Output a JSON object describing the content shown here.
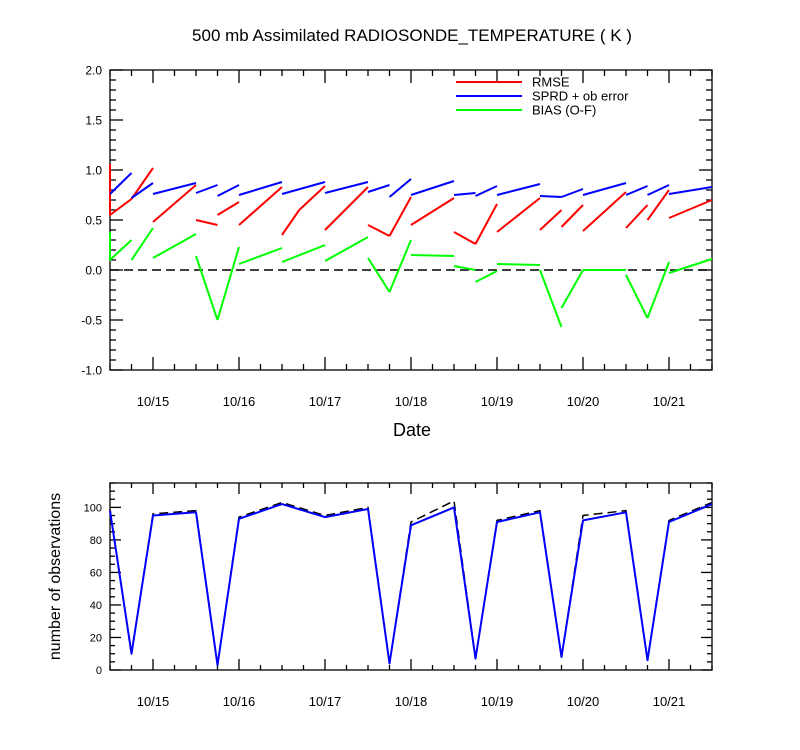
{
  "figure": {
    "title": "500 mb Assimilated RADIOSONDE_TEMPERATURE ( K )",
    "xlabel": "Date"
  },
  "chart_data": [
    {
      "type": "line",
      "title": "500 mb Assimilated RADIOSONDE_TEMPERATURE ( K )",
      "xlabel": "Date",
      "ylabel": "",
      "ylim": [
        -1.0,
        2.0
      ],
      "xlim": [
        14.5,
        21.5
      ],
      "x_tick_values": [
        15,
        16,
        17,
        18,
        19,
        20,
        21
      ],
      "x_tick_labels": [
        "10/15",
        "10/16",
        "10/17",
        "10/18",
        "10/19",
        "10/20",
        "10/21"
      ],
      "y_tick_values": [
        -1.0,
        -0.5,
        0.0,
        0.5,
        1.0,
        1.5,
        2.0
      ],
      "y_tick_labels": [
        "-1.0",
        "-0.5",
        "0.0",
        "0.5",
        "1.0",
        "1.5",
        "2.0"
      ],
      "reference_line": {
        "y": 0.0,
        "style": "dashed",
        "color": "#000000"
      },
      "legend": {
        "placement": "top-right",
        "entries": [
          "RMSE",
          "SPRD + ob error",
          "BIAS (O-F)"
        ]
      },
      "series": [
        {
          "name": "RMSE",
          "color": "#ff0000",
          "segments": [
            [
              [
                14.5,
                1.06
              ],
              [
                14.5,
                0.55
              ],
              [
                14.75,
                0.71
              ]
            ],
            [
              [
                14.75,
                0.71
              ],
              [
                15.0,
                1.02
              ]
            ],
            [
              [
                15.0,
                0.48
              ],
              [
                15.5,
                0.85
              ]
            ],
            [
              [
                15.5,
                0.5
              ],
              [
                15.75,
                0.45
              ]
            ],
            [
              [
                15.75,
                0.55
              ],
              [
                16.0,
                0.68
              ]
            ],
            [
              [
                16.0,
                0.45
              ],
              [
                16.5,
                0.83
              ]
            ],
            [
              [
                16.5,
                0.35
              ],
              [
                16.7,
                0.6
              ]
            ],
            [
              [
                16.7,
                0.6
              ],
              [
                17.0,
                0.84
              ]
            ],
            [
              [
                17.0,
                0.4
              ],
              [
                17.5,
                0.83
              ]
            ],
            [
              [
                17.5,
                0.45
              ],
              [
                17.75,
                0.34
              ]
            ],
            [
              [
                17.75,
                0.34
              ],
              [
                18.0,
                0.73
              ]
            ],
            [
              [
                18.0,
                0.45
              ],
              [
                18.5,
                0.72
              ]
            ],
            [
              [
                18.5,
                0.38
              ],
              [
                18.75,
                0.26
              ]
            ],
            [
              [
                18.75,
                0.26
              ],
              [
                19.0,
                0.66
              ]
            ],
            [
              [
                19.0,
                0.38
              ],
              [
                19.5,
                0.72
              ]
            ],
            [
              [
                19.5,
                0.4
              ],
              [
                19.75,
                0.6
              ]
            ],
            [
              [
                19.75,
                0.43
              ],
              [
                20.0,
                0.65
              ]
            ],
            [
              [
                20.0,
                0.39
              ],
              [
                20.5,
                0.78
              ]
            ],
            [
              [
                20.5,
                0.42
              ],
              [
                20.75,
                0.65
              ]
            ],
            [
              [
                20.75,
                0.5
              ],
              [
                21.0,
                0.8
              ]
            ],
            [
              [
                21.0,
                0.52
              ],
              [
                21.5,
                0.7
              ]
            ]
          ]
        },
        {
          "name": "SPRD + ob error",
          "color": "#0000ff",
          "segments": [
            [
              [
                14.5,
                0.76
              ],
              [
                14.75,
                0.97
              ]
            ],
            [
              [
                14.75,
                0.72
              ],
              [
                15.0,
                0.87
              ]
            ],
            [
              [
                15.0,
                0.76
              ],
              [
                15.5,
                0.87
              ]
            ],
            [
              [
                15.5,
                0.77
              ],
              [
                15.75,
                0.85
              ]
            ],
            [
              [
                15.75,
                0.74
              ],
              [
                16.0,
                0.85
              ]
            ],
            [
              [
                16.0,
                0.75
              ],
              [
                16.5,
                0.88
              ]
            ],
            [
              [
                16.5,
                0.76
              ],
              [
                17.0,
                0.88
              ]
            ],
            [
              [
                17.0,
                0.77
              ],
              [
                17.5,
                0.88
              ]
            ],
            [
              [
                17.5,
                0.78
              ],
              [
                17.75,
                0.85
              ]
            ],
            [
              [
                17.75,
                0.73
              ],
              [
                18.0,
                0.91
              ]
            ],
            [
              [
                18.0,
                0.75
              ],
              [
                18.5,
                0.89
              ]
            ],
            [
              [
                18.5,
                0.75
              ],
              [
                18.75,
                0.77
              ]
            ],
            [
              [
                18.75,
                0.74
              ],
              [
                19.0,
                0.84
              ]
            ],
            [
              [
                19.0,
                0.75
              ],
              [
                19.5,
                0.86
              ]
            ],
            [
              [
                19.5,
                0.74
              ],
              [
                19.75,
                0.73
              ]
            ],
            [
              [
                19.75,
                0.73
              ],
              [
                20.0,
                0.81
              ]
            ],
            [
              [
                20.0,
                0.75
              ],
              [
                20.5,
                0.87
              ]
            ],
            [
              [
                20.5,
                0.75
              ],
              [
                20.75,
                0.84
              ]
            ],
            [
              [
                20.75,
                0.75
              ],
              [
                21.0,
                0.85
              ]
            ],
            [
              [
                21.0,
                0.76
              ],
              [
                21.5,
                0.83
              ]
            ]
          ]
        },
        {
          "name": "BIAS (O-F)",
          "color": "#00ff00",
          "segments": [
            [
              [
                14.5,
                0.38
              ],
              [
                14.5,
                0.1
              ],
              [
                14.75,
                0.3
              ]
            ],
            [
              [
                14.75,
                0.1
              ],
              [
                15.0,
                0.42
              ]
            ],
            [
              [
                15.0,
                0.12
              ],
              [
                15.5,
                0.36
              ]
            ],
            [
              [
                15.5,
                0.14
              ],
              [
                15.75,
                -0.5
              ]
            ],
            [
              [
                15.75,
                -0.5
              ],
              [
                16.0,
                0.23
              ]
            ],
            [
              [
                16.0,
                0.06
              ],
              [
                16.5,
                0.22
              ]
            ],
            [
              [
                16.5,
                0.08
              ],
              [
                17.0,
                0.25
              ]
            ],
            [
              [
                17.0,
                0.09
              ],
              [
                17.5,
                0.33
              ]
            ],
            [
              [
                17.5,
                0.12
              ],
              [
                17.75,
                -0.22
              ]
            ],
            [
              [
                17.75,
                -0.22
              ],
              [
                18.0,
                0.3
              ]
            ],
            [
              [
                18.0,
                0.15
              ],
              [
                18.5,
                0.14
              ]
            ],
            [
              [
                18.5,
                0.04
              ],
              [
                18.75,
                0.0
              ]
            ],
            [
              [
                18.75,
                -0.12
              ],
              [
                19.0,
                -0.01
              ]
            ],
            [
              [
                19.0,
                0.06
              ],
              [
                19.5,
                0.05
              ]
            ],
            [
              [
                19.5,
                0.0
              ],
              [
                19.75,
                -0.57
              ]
            ],
            [
              [
                19.75,
                -0.38
              ],
              [
                20.0,
                0.0
              ]
            ],
            [
              [
                20.0,
                0.0
              ],
              [
                20.5,
                0.0
              ]
            ],
            [
              [
                20.5,
                -0.05
              ],
              [
                20.75,
                -0.48
              ]
            ],
            [
              [
                20.75,
                -0.48
              ],
              [
                21.0,
                0.08
              ]
            ],
            [
              [
                21.0,
                -0.03
              ],
              [
                21.5,
                0.11
              ]
            ]
          ]
        }
      ]
    },
    {
      "type": "line",
      "title": "",
      "xlabel": "",
      "ylabel": "number of observations",
      "ylim": [
        0,
        115
      ],
      "xlim": [
        14.5,
        21.5
      ],
      "x_tick_values": [
        15,
        16,
        17,
        18,
        19,
        20,
        21
      ],
      "x_tick_labels": [
        "10/15",
        "10/16",
        "10/17",
        "10/18",
        "10/19",
        "10/20",
        "10/21"
      ],
      "y_tick_values": [
        0,
        20,
        40,
        60,
        80,
        100
      ],
      "y_tick_labels": [
        "0",
        "20",
        "40",
        "60",
        "80",
        "100"
      ],
      "series": [
        {
          "color": "#000000",
          "style": "dashed",
          "x": [
            14.5,
            14.75,
            15.0,
            15.5,
            15.75,
            16.0,
            16.5,
            17.0,
            17.5,
            17.75,
            18.0,
            18.5,
            18.75,
            19.0,
            19.5,
            19.75,
            20.0,
            20.5,
            20.75,
            21.0,
            21.5
          ],
          "y": [
            99,
            10,
            96,
            98,
            3,
            94,
            103,
            95,
            100,
            4,
            91,
            104,
            7,
            92,
            98,
            8,
            95,
            98,
            6,
            92,
            103
          ]
        },
        {
          "color": "#0000ff",
          "style": "solid",
          "x": [
            14.5,
            14.75,
            15.0,
            15.5,
            15.75,
            16.0,
            16.5,
            17.0,
            17.5,
            17.75,
            18.0,
            18.5,
            18.75,
            19.0,
            19.5,
            19.75,
            20.0,
            20.5,
            20.75,
            21.0,
            21.5
          ],
          "y": [
            98,
            10,
            95,
            97,
            3,
            93,
            102,
            94,
            99,
            4,
            89,
            100,
            7,
            91,
            97,
            8,
            92,
            97,
            6,
            91,
            102
          ]
        }
      ]
    }
  ]
}
